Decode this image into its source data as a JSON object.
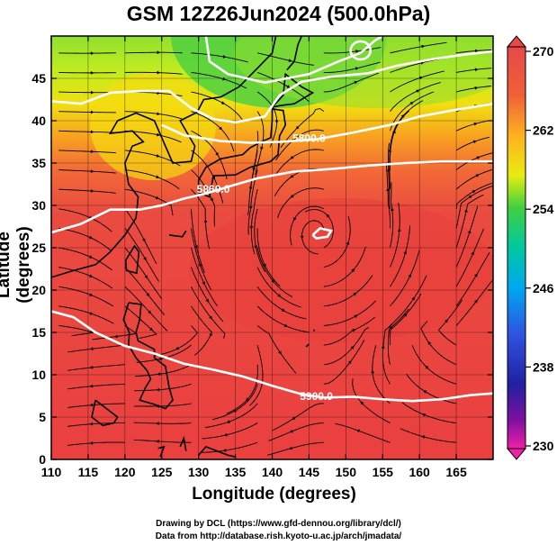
{
  "title": "GSM 12Z26Jun2024 (500.0hPa)",
  "xlabel": "Longitude (degrees)",
  "ylabel": "Latitude  (degrees)",
  "credit_line1": "Drawing by DCL (https://www.gfd-dennou.org/library/dcl/)",
  "credit_line2": "Data from http://database.rish.kyoto-u.ac.jp/arch/jmadata/",
  "map": {
    "lon_range": [
      110,
      170
    ],
    "lat_range": [
      0,
      50
    ],
    "lon_ticks": [
      "110",
      "115",
      "120",
      "125",
      "130",
      "135",
      "140",
      "145",
      "150",
      "155",
      "160",
      "165"
    ],
    "lon_tick_values": [
      110,
      115,
      120,
      125,
      130,
      135,
      140,
      145,
      150,
      155,
      160,
      165
    ],
    "lat_ticks": [
      "0",
      "5",
      "10",
      "15",
      "20",
      "25",
      "30",
      "35",
      "40",
      "45"
    ],
    "lat_tick_values": [
      0,
      5,
      10,
      15,
      20,
      25,
      30,
      35,
      40,
      45
    ],
    "contour_labels": [
      {
        "text": "5800.0",
        "lon": 145,
        "lat": 37.5
      },
      {
        "text": "5860.0",
        "lon": 132,
        "lat": 31.5
      },
      {
        "text": "5900.0",
        "lon": 146,
        "lat": 7
      }
    ],
    "contours": [
      {
        "value": "5700",
        "points": [
          [
            131,
            50
          ],
          [
            131.5,
            47
          ],
          [
            134,
            45.5
          ],
          [
            139,
            44.5
          ],
          [
            145,
            45.5
          ],
          [
            149,
            47
          ],
          [
            152,
            48
          ],
          [
            154,
            49.5
          ],
          [
            155,
            50
          ]
        ]
      },
      {
        "value": "5740",
        "points": [
          [
            110,
            42.3
          ],
          [
            114,
            42
          ],
          [
            118,
            43.3
          ],
          [
            122,
            43.5
          ],
          [
            126,
            43.5
          ],
          [
            129,
            41.5
          ],
          [
            132,
            40.2
          ],
          [
            135,
            39.8
          ],
          [
            139,
            40.5
          ],
          [
            141,
            43
          ],
          [
            144,
            44.6
          ],
          [
            148,
            45.2
          ],
          [
            153,
            45.6
          ],
          [
            157,
            46.5
          ],
          [
            162,
            47.3
          ],
          [
            166,
            47.8
          ],
          [
            170,
            48.2
          ]
        ]
      },
      {
        "value": "5800",
        "points": [
          [
            125,
            39.5
          ],
          [
            128,
            38.3
          ],
          [
            130,
            38
          ],
          [
            133,
            37.6
          ],
          [
            137,
            37.4
          ],
          [
            141,
            37.5
          ],
          [
            146,
            37.8
          ],
          [
            151,
            38.6
          ],
          [
            156,
            39.5
          ],
          [
            160,
            40.5
          ],
          [
            165,
            41.3
          ],
          [
            170,
            42
          ]
        ]
      },
      {
        "value": "5860",
        "points": [
          [
            110,
            26.8
          ],
          [
            114,
            27.8
          ],
          [
            118,
            29.5
          ],
          [
            122,
            29.5
          ],
          [
            125,
            30
          ],
          [
            128,
            30.8
          ],
          [
            131,
            31.4
          ],
          [
            134,
            32.2
          ],
          [
            138,
            33.2
          ],
          [
            143,
            34
          ],
          [
            148,
            34.3
          ],
          [
            153,
            34.7
          ],
          [
            158,
            35
          ],
          [
            163,
            35.2
          ],
          [
            170,
            35.2
          ]
        ]
      },
      {
        "value": "5900",
        "points": [
          [
            110,
            17.5
          ],
          [
            113,
            16.8
          ],
          [
            116,
            15
          ],
          [
            120,
            13.4
          ],
          [
            124,
            12.5
          ],
          [
            128,
            11.3
          ],
          [
            132,
            10.6
          ],
          [
            136,
            9.8
          ],
          [
            140,
            8.7
          ],
          [
            144,
            7.7
          ],
          [
            147,
            7.3
          ],
          [
            151,
            7.4
          ],
          [
            155,
            7.1
          ],
          [
            159,
            6.9
          ],
          [
            163,
            7.1
          ],
          [
            167,
            7.6
          ],
          [
            170,
            7.8
          ]
        ]
      },
      {
        "value": "5900b",
        "points": [
          [
            145.5,
            26.5
          ],
          [
            146.5,
            27.3
          ],
          [
            148,
            27
          ],
          [
            147.5,
            26.3
          ],
          [
            146,
            26.1
          ],
          [
            145.5,
            26.5
          ]
        ]
      }
    ],
    "coastline_note": "Asia and Western Pacific coastlines"
  },
  "colorbar": {
    "labels": [
      "270",
      "262",
      "254",
      "246",
      "238",
      "230"
    ],
    "values": [
      270,
      262,
      254,
      246,
      238,
      230
    ],
    "min": 230,
    "max": 270,
    "colors": [
      "#e84848",
      "#f06a38",
      "#ffb020",
      "#f5f000",
      "#40d040",
      "#00d0a0",
      "#00b0f0",
      "#3060e0",
      "#2020b0",
      "#800090",
      "#e020a0"
    ]
  }
}
